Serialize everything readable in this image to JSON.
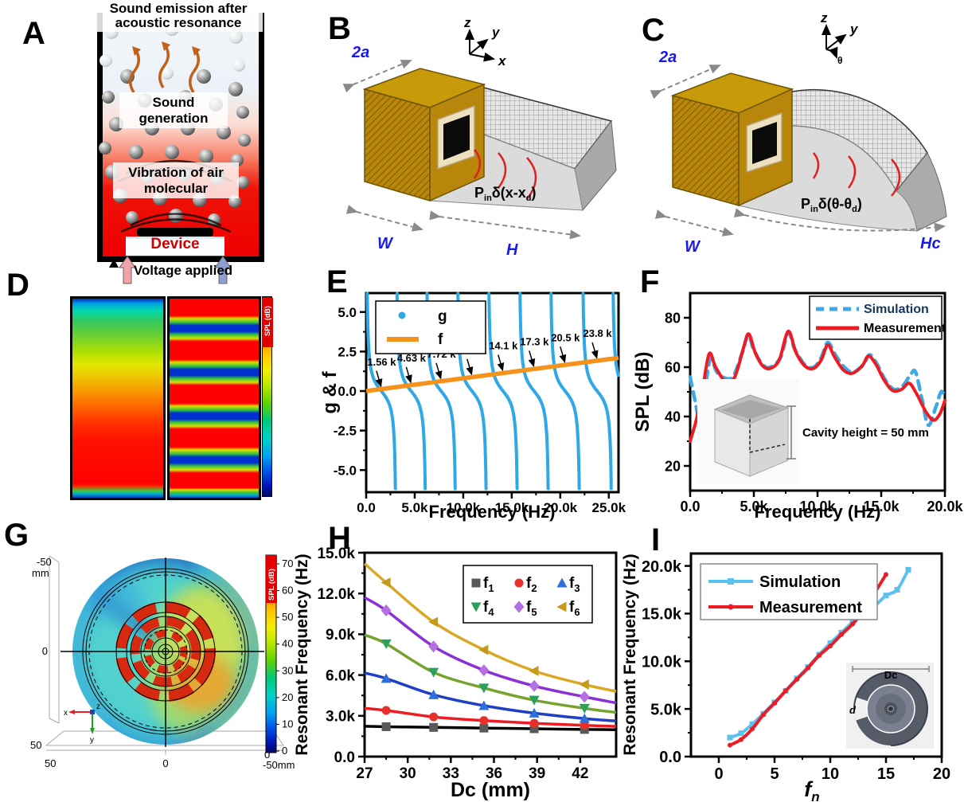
{
  "colors": {
    "sky_blue": "#2FA8E8",
    "orange": "#F5921B",
    "red": "#ED1C24",
    "blue_label": "#1A1AE6",
    "sim_dark_text": "#16365C",
    "gold_box": "#C79A0A",
    "gold_dark": "#B8860B"
  },
  "panels": {
    "a": {
      "letter": "A",
      "title": "Sound emission after acoustic resonance",
      "label_sound_generation": "Sound generation",
      "label_vibration": "Vibration of air molecular",
      "label_device": "Device",
      "label_voltage": "Voltage applied"
    },
    "b": {
      "letter": "B",
      "dim_2a": "2a",
      "dim_w": "W",
      "dim_h": "H",
      "axis": [
        "z",
        "y",
        "x"
      ],
      "source": {
        "p": "P",
        "sub_in": "in",
        "mid": "δ(x-x",
        "sub_d": "d",
        "end": ")"
      }
    },
    "c": {
      "letter": "C",
      "dim_2a": "2a",
      "dim_w": "W",
      "dim_h": "Hc",
      "axis": [
        "z",
        "y",
        "θ"
      ],
      "source": {
        "p": "P",
        "sub_in": "in",
        "mid": "δ(θ-θ",
        "sub_d": "d",
        "end": ")"
      }
    },
    "d": {
      "letter": "D",
      "colorbar_label": "SPL (dB)"
    },
    "e": {
      "letter": "E"
    },
    "f": {
      "letter": "F"
    },
    "g": {
      "letter": "G",
      "colorbar_label": "SPL (dB)",
      "colorbar_ticks": [
        "70",
        "60",
        "50",
        "40",
        "30",
        "20",
        "10",
        "0"
      ],
      "axis_labels": {
        "top_left": "-50",
        "top_left_unit": "mm",
        "mid_left": "0",
        "bottom_left": "50",
        "bottom_50": "50",
        "bottom_0": "0",
        "bottom_right": "-50mm",
        "right_zero": "0"
      },
      "triad": [
        "x",
        "y",
        "z"
      ]
    },
    "h": {
      "letter": "H"
    },
    "i": {
      "letter": "I"
    }
  },
  "chart_data": [
    {
      "id": "e",
      "type": "line",
      "xlabel": "Frequency (Hz)",
      "ylabel": "g & f",
      "xlim": [
        0,
        26000
      ],
      "ylim": [
        -6.4,
        6.2
      ],
      "xticks": {
        "values": [
          0,
          5000,
          10000,
          15000,
          20000,
          25000
        ],
        "labels": [
          "0.0",
          "5.0k",
          "10.0k",
          "15.0k",
          "20.0k",
          "25.0k"
        ]
      },
      "yticks": {
        "values": [
          5,
          2.5,
          0,
          -2.5,
          -5
        ],
        "labels": [
          "5.0",
          "2.5",
          "0.0",
          "-2.5",
          "-5.0"
        ]
      },
      "legend": [
        {
          "label": "g",
          "color": "#2FA8E8",
          "style": "dot"
        },
        {
          "label": "f",
          "color": "#F5921B",
          "style": "line"
        }
      ],
      "f_line": {
        "x": [
          0,
          26000
        ],
        "y": [
          0,
          2.1
        ]
      },
      "g_branches": {
        "centers": [
          1560,
          4630,
          7720,
          10900,
          14100,
          17300,
          20500,
          23800,
          26900
        ],
        "period": 3150,
        "amplitude": 0.78
      },
      "annotations": [
        {
          "text": "1.56 k",
          "x": 1560
        },
        {
          "text": "4.63 k",
          "x": 4630
        },
        {
          "text": "7.72 k",
          "x": 7720
        },
        {
          "text": "10.9 k",
          "x": 10900
        },
        {
          "text": "14.1 k",
          "x": 14100
        },
        {
          "text": "17.3 k",
          "x": 17300
        },
        {
          "text": "20.5 k",
          "x": 20500
        },
        {
          "text": "23.8 k",
          "x": 23800
        }
      ]
    },
    {
      "id": "f",
      "type": "line",
      "xlabel": "Frequency (Hz)",
      "ylabel": "SPL (dB)",
      "xlim": [
        0,
        20000
      ],
      "ylim": [
        10,
        90
      ],
      "xticks": {
        "values": [
          0,
          5000,
          10000,
          15000,
          20000
        ],
        "labels": [
          "0.0",
          "5.0k",
          "10.0k",
          "15.0k",
          "20.0k"
        ]
      },
      "yticks": {
        "values": [
          20,
          40,
          60,
          80
        ],
        "labels": [
          "20",
          "40",
          "60",
          "80"
        ]
      },
      "inset_caption": "Cavity height = 50 mm",
      "series": [
        {
          "name": "Simulation",
          "color": "#3FA9E6",
          "dash": true,
          "text_color": "#16365C",
          "points": [
            [
              0,
              56
            ],
            [
              400,
              46
            ],
            [
              800,
              37.5
            ],
            [
              1200,
              52
            ],
            [
              1600,
              63.5
            ],
            [
              2100,
              58
            ],
            [
              2800,
              55.5
            ],
            [
              3400,
              56.5
            ],
            [
              4100,
              66
            ],
            [
              4550,
              73
            ],
            [
              5000,
              67
            ],
            [
              5700,
              61
            ],
            [
              6300,
              60
            ],
            [
              7100,
              64
            ],
            [
              7700,
              74
            ],
            [
              8200,
              67.5
            ],
            [
              9000,
              61
            ],
            [
              9700,
              60
            ],
            [
              10300,
              64
            ],
            [
              10800,
              70
            ],
            [
              11400,
              65
            ],
            [
              12100,
              60
            ],
            [
              12800,
              58
            ],
            [
              13600,
              61
            ],
            [
              14100,
              65
            ],
            [
              14700,
              61
            ],
            [
              15300,
              55
            ],
            [
              16000,
              51
            ],
            [
              16700,
              52.5
            ],
            [
              17300,
              57
            ],
            [
              17700,
              58
            ],
            [
              18200,
              47
            ],
            [
              18700,
              36.5
            ],
            [
              19300,
              44
            ],
            [
              19700,
              50
            ],
            [
              20000,
              48
            ]
          ]
        },
        {
          "name": "Measurement",
          "color": "#ED1C24",
          "dash": false,
          "text_color": "#000000",
          "points": [
            [
              0,
              30
            ],
            [
              500,
              39
            ],
            [
              1000,
              52
            ],
            [
              1500,
              65.5
            ],
            [
              2000,
              60
            ],
            [
              2800,
              54
            ],
            [
              3500,
              56
            ],
            [
              4200,
              68
            ],
            [
              4600,
              73.5
            ],
            [
              5100,
              66
            ],
            [
              5700,
              60.5
            ],
            [
              6300,
              59.5
            ],
            [
              7000,
              63
            ],
            [
              7700,
              74.5
            ],
            [
              8300,
              66
            ],
            [
              9000,
              60.5
            ],
            [
              9700,
              59.5
            ],
            [
              10300,
              63
            ],
            [
              10800,
              69
            ],
            [
              11300,
              64.5
            ],
            [
              12000,
              59
            ],
            [
              12700,
              57.5
            ],
            [
              13500,
              60.5
            ],
            [
              14000,
              64.5
            ],
            [
              14600,
              61
            ],
            [
              15200,
              55
            ],
            [
              15900,
              50.5
            ],
            [
              16600,
              51
            ],
            [
              17200,
              53.5
            ],
            [
              17800,
              49
            ],
            [
              18500,
              42
            ],
            [
              19100,
              38.5
            ],
            [
              19600,
              41
            ],
            [
              20000,
              46.5
            ]
          ]
        }
      ]
    },
    {
      "id": "h",
      "type": "scatter-line",
      "xlabel": "Dc (mm)",
      "ylabel": "Resonant Frequency (Hz)",
      "xlim": [
        27,
        44.5
      ],
      "ylim": [
        0,
        15000
      ],
      "xticks": {
        "values": [
          27,
          30,
          33,
          36,
          39,
          42
        ],
        "labels": [
          "27",
          "30",
          "33",
          "36",
          "39",
          "42"
        ]
      },
      "yticks": {
        "values": [
          0,
          3000,
          6000,
          9000,
          12000,
          15000
        ],
        "labels": [
          "0.0",
          "3.0k",
          "6.0k",
          "9.0k",
          "12.0k",
          "15.0k"
        ]
      },
      "series": [
        {
          "name": "f",
          "sub": "1",
          "line_color": "#000000",
          "marker_color": "#595959",
          "marker": "square",
          "line_points": [
            [
              27,
              2230
            ],
            [
              28.5,
              2200
            ],
            [
              31.8,
              2150
            ],
            [
              35.3,
              2100
            ],
            [
              38.8,
              2050
            ],
            [
              42.3,
              2000
            ],
            [
              44.5,
              1980
            ]
          ]
        },
        {
          "name": "f",
          "sub": "2",
          "line_color": "#ED1C24",
          "marker_color": "#E8302A",
          "marker": "circle",
          "line_points": [
            [
              27,
              3560
            ],
            [
              28.5,
              3400
            ],
            [
              31.8,
              2920
            ],
            [
              35.3,
              2650
            ],
            [
              38.8,
              2450
            ],
            [
              42.3,
              2300
            ],
            [
              44.5,
              2220
            ]
          ]
        },
        {
          "name": "f",
          "sub": "3",
          "line_color": "#1F3FC4",
          "marker_color": "#2E6FD8",
          "marker": "tri-up",
          "line_points": [
            [
              27,
              6150
            ],
            [
              28.5,
              5750
            ],
            [
              31.8,
              4550
            ],
            [
              35.3,
              3750
            ],
            [
              38.8,
              3200
            ],
            [
              42.3,
              2800
            ],
            [
              44.5,
              2620
            ]
          ]
        },
        {
          "name": "f",
          "sub": "4",
          "line_color": "#76A32E",
          "marker_color": "#2BA05A",
          "marker": "tri-down",
          "line_points": [
            [
              27,
              8950
            ],
            [
              28.5,
              8300
            ],
            [
              31.8,
              6200
            ],
            [
              35.3,
              5050
            ],
            [
              38.8,
              4150
            ],
            [
              42.3,
              3550
            ],
            [
              44.5,
              3250
            ]
          ]
        },
        {
          "name": "f",
          "sub": "5",
          "line_color": "#8B2FD6",
          "marker_color": "#B46FE0",
          "marker": "diamond",
          "line_points": [
            [
              27,
              11700
            ],
            [
              28.5,
              10750
            ],
            [
              31.8,
              8100
            ],
            [
              35.3,
              6350
            ],
            [
              38.8,
              5200
            ],
            [
              42.3,
              4400
            ],
            [
              44.5,
              3950
            ]
          ]
        },
        {
          "name": "f",
          "sub": "6",
          "line_color": "#D9A826",
          "marker_color": "#C49A1D",
          "marker": "tri-left",
          "line_points": [
            [
              27,
              14200
            ],
            [
              28.5,
              12800
            ],
            [
              31.8,
              9900
            ],
            [
              35.3,
              7850
            ],
            [
              38.8,
              6300
            ],
            [
              42.3,
              5300
            ],
            [
              44.5,
              4800
            ]
          ]
        }
      ],
      "marker_x": [
        28.5,
        31.8,
        35.3,
        38.8,
        42.3
      ]
    },
    {
      "id": "i",
      "type": "scatter-line",
      "xlabel_main": "f",
      "xlabel_sub": "n",
      "ylabel": "Resonant Frequency (Hz)",
      "xlim": [
        -2.5,
        20
      ],
      "ylim": [
        0,
        21300
      ],
      "xticks": {
        "values": [
          0,
          5,
          10,
          15,
          20
        ],
        "labels": [
          "0",
          "5",
          "10",
          "15",
          "20"
        ]
      },
      "yticks": {
        "values": [
          0,
          5000,
          10000,
          15000,
          20000
        ],
        "labels": [
          "0.0",
          "5.0k",
          "10.0k",
          "15.0k",
          "20.0k"
        ]
      },
      "inset_labels": {
        "dc": "Dc",
        "d": "d"
      },
      "series": [
        {
          "name": "Simulation",
          "color": "#5BC2EE",
          "marker": "square",
          "points": [
            [
              1,
              2000
            ],
            [
              2,
              2450
            ],
            [
              3,
              3400
            ],
            [
              4,
              4500
            ],
            [
              5,
              5700
            ],
            [
              6,
              6900
            ],
            [
              7,
              8200
            ],
            [
              8,
              9400
            ],
            [
              9,
              10700
            ],
            [
              10,
              11900
            ],
            [
              11,
              13000
            ],
            [
              12,
              14100
            ],
            [
              13,
              15000
            ],
            [
              14,
              15800
            ],
            [
              15,
              16900
            ],
            [
              16,
              17500
            ],
            [
              17,
              19600
            ]
          ]
        },
        {
          "name": "Measurement",
          "color": "#ED1C24",
          "marker": "circle",
          "points": [
            [
              1,
              1200
            ],
            [
              2,
              1800
            ],
            [
              3,
              2900
            ],
            [
              4,
              4400
            ],
            [
              5,
              5600
            ],
            [
              6,
              6900
            ],
            [
              7,
              8100
            ],
            [
              8,
              9300
            ],
            [
              9,
              10600
            ],
            [
              10,
              11600
            ],
            [
              11,
              12800
            ],
            [
              12,
              13900
            ],
            [
              13,
              15300
            ],
            [
              14,
              17200
            ],
            [
              15,
              19100
            ]
          ]
        }
      ]
    },
    {
      "id": "d",
      "type": "heatmap",
      "description": "Two vertical SPL field maps: left smooth gradient blue-to-red, right striped resonance pattern",
      "colorbar_label": "SPL (dB)"
    },
    {
      "id": "g",
      "type": "heatmap",
      "description": "Circular SPL field map of spiral device, cyan-green field with red resonant rings at center",
      "colorbar_label": "SPL (dB)",
      "colorbar_range": [
        0,
        70
      ],
      "axis_range_mm": [
        -50,
        50
      ]
    }
  ]
}
